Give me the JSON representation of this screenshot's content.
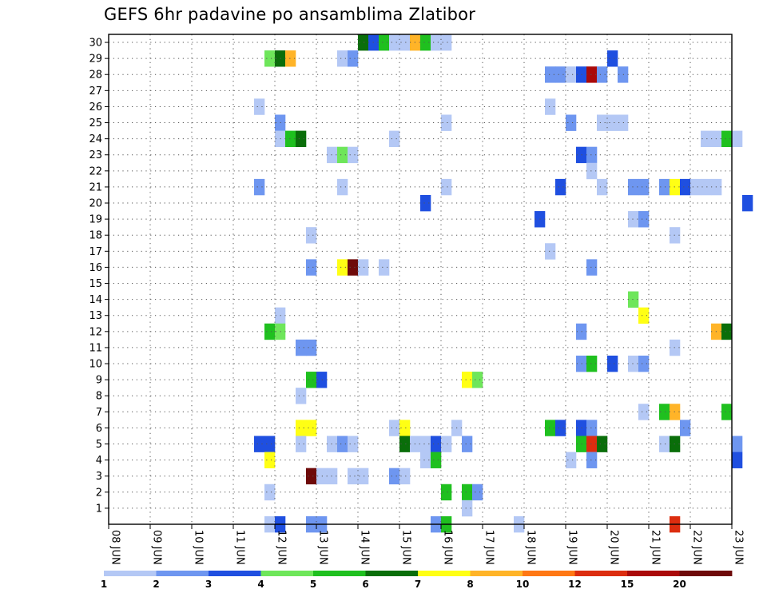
{
  "chart_data": {
    "type": "heatmap",
    "title": "GEFS 6hr padavine po ansamblima Zlatibor",
    "xlabel": "",
    "ylabel": "",
    "x_tick_labels": [
      "08 JUN",
      "09 JUN",
      "10 JUN",
      "11 JUN",
      "12 JUN",
      "13 JUN",
      "14 JUN",
      "15 JUN",
      "16 JUN",
      "17 JUN",
      "18 JUN",
      "19 JUN",
      "20 JUN",
      "21 JUN",
      "22 JUN",
      "23 JUN"
    ],
    "y_tick_labels": [
      "1",
      "2",
      "3",
      "4",
      "5",
      "6",
      "7",
      "8",
      "9",
      "10",
      "11",
      "12",
      "13",
      "14",
      "15",
      "16",
      "17",
      "18",
      "19",
      "20",
      "21",
      "22",
      "23",
      "24",
      "25",
      "26",
      "27",
      "28",
      "29",
      "30"
    ],
    "time_step_hours": 6,
    "first_day": 8,
    "member_range": [
      0,
      30
    ],
    "grid": "dotted",
    "colorbar": {
      "labels": [
        "1",
        "2",
        "3",
        "4",
        "5",
        "6",
        "7",
        "8",
        "10",
        "12",
        "15",
        "20"
      ],
      "colors": [
        "#b4c8f5",
        "#6e96f0",
        "#1f4fe0",
        "#6ee65a",
        "#1fc01f",
        "#0a6e0a",
        "#ffff14",
        "#ffb428",
        "#ff7814",
        "#dc2d0f",
        "#aa0a0a",
        "#6e0a0a"
      ]
    },
    "cells": [
      {
        "m": 30,
        "s": 24,
        "c": 5
      },
      {
        "m": 30,
        "s": 25,
        "c": 2
      },
      {
        "m": 30,
        "s": 26,
        "c": 4
      },
      {
        "m": 30,
        "s": 27,
        "c": 0
      },
      {
        "m": 30,
        "s": 28,
        "c": 0
      },
      {
        "m": 30,
        "s": 29,
        "c": 7
      },
      {
        "m": 30,
        "s": 30,
        "c": 4
      },
      {
        "m": 30,
        "s": 31,
        "c": 0
      },
      {
        "m": 30,
        "s": 32,
        "c": 0
      },
      {
        "m": 29,
        "s": 15,
        "c": 3
      },
      {
        "m": 29,
        "s": 16,
        "c": 5
      },
      {
        "m": 29,
        "s": 17,
        "c": 7
      },
      {
        "m": 29,
        "s": 22,
        "c": 0
      },
      {
        "m": 29,
        "s": 23,
        "c": 1
      },
      {
        "m": 29,
        "s": 48,
        "c": 2
      },
      {
        "m": 28,
        "s": 42,
        "c": 1
      },
      {
        "m": 28,
        "s": 43,
        "c": 1
      },
      {
        "m": 28,
        "s": 44,
        "c": 0
      },
      {
        "m": 28,
        "s": 45,
        "c": 2
      },
      {
        "m": 28,
        "s": 46,
        "c": 10
      },
      {
        "m": 28,
        "s": 47,
        "c": 1
      },
      {
        "m": 28,
        "s": 49,
        "c": 1
      },
      {
        "m": 26,
        "s": 14,
        "c": 0
      },
      {
        "m": 26,
        "s": 42,
        "c": 0
      },
      {
        "m": 25,
        "s": 16,
        "c": 1
      },
      {
        "m": 25,
        "s": 32,
        "c": 0
      },
      {
        "m": 25,
        "s": 44,
        "c": 1
      },
      {
        "m": 25,
        "s": 47,
        "c": 0
      },
      {
        "m": 25,
        "s": 48,
        "c": 0
      },
      {
        "m": 25,
        "s": 49,
        "c": 0
      },
      {
        "m": 24,
        "s": 16,
        "c": 0
      },
      {
        "m": 24,
        "s": 17,
        "c": 4
      },
      {
        "m": 24,
        "s": 18,
        "c": 5
      },
      {
        "m": 24,
        "s": 27,
        "c": 0
      },
      {
        "m": 24,
        "s": 57,
        "c": 0
      },
      {
        "m": 24,
        "s": 58,
        "c": 0
      },
      {
        "m": 24,
        "s": 59,
        "c": 4
      },
      {
        "m": 24,
        "s": 60,
        "c": 0
      },
      {
        "m": 23,
        "s": 21,
        "c": 0
      },
      {
        "m": 23,
        "s": 22,
        "c": 3
      },
      {
        "m": 23,
        "s": 23,
        "c": 0
      },
      {
        "m": 23,
        "s": 45,
        "c": 2
      },
      {
        "m": 23,
        "s": 46,
        "c": 1
      },
      {
        "m": 22,
        "s": 46,
        "c": 0
      },
      {
        "m": 21,
        "s": 14,
        "c": 1
      },
      {
        "m": 21,
        "s": 22,
        "c": 0
      },
      {
        "m": 21,
        "s": 32,
        "c": 0
      },
      {
        "m": 21,
        "s": 43,
        "c": 2
      },
      {
        "m": 21,
        "s": 47,
        "c": 0
      },
      {
        "m": 21,
        "s": 50,
        "c": 1
      },
      {
        "m": 21,
        "s": 51,
        "c": 1
      },
      {
        "m": 21,
        "s": 53,
        "c": 1
      },
      {
        "m": 21,
        "s": 54,
        "c": 6
      },
      {
        "m": 21,
        "s": 55,
        "c": 2
      },
      {
        "m": 21,
        "s": 56,
        "c": 0
      },
      {
        "m": 21,
        "s": 57,
        "c": 0
      },
      {
        "m": 21,
        "s": 58,
        "c": 0
      },
      {
        "m": 20,
        "s": 30,
        "c": 2
      },
      {
        "m": 20,
        "s": 61,
        "c": 2
      },
      {
        "m": 19,
        "s": 41,
        "c": 2
      },
      {
        "m": 19,
        "s": 50,
        "c": 0
      },
      {
        "m": 19,
        "s": 51,
        "c": 1
      },
      {
        "m": 18,
        "s": 19,
        "c": 0
      },
      {
        "m": 18,
        "s": 54,
        "c": 0
      },
      {
        "m": 17,
        "s": 42,
        "c": 0
      },
      {
        "m": 16,
        "s": 19,
        "c": 1
      },
      {
        "m": 16,
        "s": 22,
        "c": 6
      },
      {
        "m": 16,
        "s": 23,
        "c": 11
      },
      {
        "m": 16,
        "s": 24,
        "c": 0
      },
      {
        "m": 16,
        "s": 26,
        "c": 0
      },
      {
        "m": 16,
        "s": 46,
        "c": 1
      },
      {
        "m": 14,
        "s": 50,
        "c": 3
      },
      {
        "m": 13,
        "s": 16,
        "c": 0
      },
      {
        "m": 13,
        "s": 51,
        "c": 6
      },
      {
        "m": 12,
        "s": 15,
        "c": 4
      },
      {
        "m": 12,
        "s": 16,
        "c": 3
      },
      {
        "m": 12,
        "s": 45,
        "c": 1
      },
      {
        "m": 12,
        "s": 58,
        "c": 7
      },
      {
        "m": 12,
        "s": 59,
        "c": 5
      },
      {
        "m": 11,
        "s": 18,
        "c": 1
      },
      {
        "m": 11,
        "s": 19,
        "c": 1
      },
      {
        "m": 11,
        "s": 54,
        "c": 0
      },
      {
        "m": 10,
        "s": 45,
        "c": 1
      },
      {
        "m": 10,
        "s": 46,
        "c": 4
      },
      {
        "m": 10,
        "s": 48,
        "c": 2
      },
      {
        "m": 10,
        "s": 50,
        "c": 0
      },
      {
        "m": 10,
        "s": 51,
        "c": 1
      },
      {
        "m": 9,
        "s": 19,
        "c": 4
      },
      {
        "m": 9,
        "s": 20,
        "c": 2
      },
      {
        "m": 9,
        "s": 34,
        "c": 6
      },
      {
        "m": 9,
        "s": 35,
        "c": 3
      },
      {
        "m": 8,
        "s": 18,
        "c": 0
      },
      {
        "m": 7,
        "s": 51,
        "c": 0
      },
      {
        "m": 7,
        "s": 53,
        "c": 4
      },
      {
        "m": 7,
        "s": 54,
        "c": 7
      },
      {
        "m": 7,
        "s": 59,
        "c": 4
      },
      {
        "m": 6,
        "s": 18,
        "c": 6
      },
      {
        "m": 6,
        "s": 19,
        "c": 6
      },
      {
        "m": 6,
        "s": 27,
        "c": 0
      },
      {
        "m": 6,
        "s": 28,
        "c": 6
      },
      {
        "m": 6,
        "s": 33,
        "c": 0
      },
      {
        "m": 6,
        "s": 42,
        "c": 4
      },
      {
        "m": 6,
        "s": 43,
        "c": 2
      },
      {
        "m": 6,
        "s": 45,
        "c": 2
      },
      {
        "m": 6,
        "s": 46,
        "c": 1
      },
      {
        "m": 6,
        "s": 55,
        "c": 1
      },
      {
        "m": 5,
        "s": 14,
        "c": 2
      },
      {
        "m": 5,
        "s": 15,
        "c": 2
      },
      {
        "m": 5,
        "s": 18,
        "c": 0
      },
      {
        "m": 5,
        "s": 21,
        "c": 0
      },
      {
        "m": 5,
        "s": 22,
        "c": 1
      },
      {
        "m": 5,
        "s": 23,
        "c": 0
      },
      {
        "m": 5,
        "s": 28,
        "c": 5
      },
      {
        "m": 5,
        "s": 29,
        "c": 0
      },
      {
        "m": 5,
        "s": 30,
        "c": 0
      },
      {
        "m": 5,
        "s": 31,
        "c": 2
      },
      {
        "m": 5,
        "s": 32,
        "c": 0
      },
      {
        "m": 5,
        "s": 34,
        "c": 1
      },
      {
        "m": 5,
        "s": 45,
        "c": 4
      },
      {
        "m": 5,
        "s": 46,
        "c": 9
      },
      {
        "m": 5,
        "s": 47,
        "c": 5
      },
      {
        "m": 5,
        "s": 53,
        "c": 0
      },
      {
        "m": 5,
        "s": 54,
        "c": 5
      },
      {
        "m": 5,
        "s": 60,
        "c": 1
      },
      {
        "m": 4,
        "s": 15,
        "c": 6
      },
      {
        "m": 4,
        "s": 30,
        "c": 0
      },
      {
        "m": 4,
        "s": 31,
        "c": 4
      },
      {
        "m": 4,
        "s": 44,
        "c": 0
      },
      {
        "m": 4,
        "s": 46,
        "c": 1
      },
      {
        "m": 4,
        "s": 60,
        "c": 2
      },
      {
        "m": 3,
        "s": 19,
        "c": 11
      },
      {
        "m": 3,
        "s": 20,
        "c": 0
      },
      {
        "m": 3,
        "s": 21,
        "c": 0
      },
      {
        "m": 3,
        "s": 23,
        "c": 0
      },
      {
        "m": 3,
        "s": 24,
        "c": 0
      },
      {
        "m": 3,
        "s": 27,
        "c": 1
      },
      {
        "m": 3,
        "s": 28,
        "c": 0
      },
      {
        "m": 2,
        "s": 15,
        "c": 0
      },
      {
        "m": 2,
        "s": 32,
        "c": 4
      },
      {
        "m": 2,
        "s": 34,
        "c": 4
      },
      {
        "m": 2,
        "s": 35,
        "c": 1
      },
      {
        "m": 1,
        "s": 34,
        "c": 0
      },
      {
        "m": 0,
        "s": 15,
        "c": 0
      },
      {
        "m": 0,
        "s": 16,
        "c": 2
      },
      {
        "m": 0,
        "s": 19,
        "c": 1
      },
      {
        "m": 0,
        "s": 20,
        "c": 1
      },
      {
        "m": 0,
        "s": 31,
        "c": 1
      },
      {
        "m": 0,
        "s": 32,
        "c": 4
      },
      {
        "m": 0,
        "s": 39,
        "c": 0
      },
      {
        "m": 0,
        "s": 54,
        "c": 9
      }
    ]
  }
}
